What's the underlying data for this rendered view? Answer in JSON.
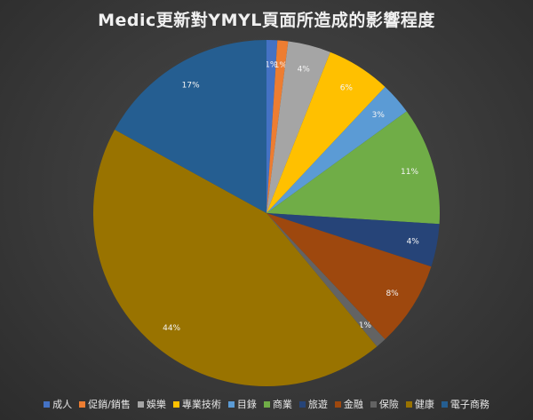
{
  "chart_data": {
    "type": "pie",
    "title": "Medic更新對YMYL頁面所造成的影響程度",
    "categories": [
      "成人",
      "促銷/銷售",
      "娛樂",
      "專業技術",
      "目錄",
      "商業",
      "旅遊",
      "金融",
      "保險",
      "健康",
      "電子商務"
    ],
    "values": [
      1,
      1,
      4,
      6,
      3,
      11,
      4,
      8,
      1,
      44,
      17
    ],
    "labels": [
      "1%",
      "1%",
      "4%",
      "6%",
      "3%",
      "11%",
      "4%",
      "8%",
      "1%",
      "44%",
      "17%"
    ],
    "colors": [
      "#4472c4",
      "#ed7d31",
      "#a5a5a5",
      "#ffc000",
      "#5b9bd5",
      "#70ad47",
      "#264478",
      "#9e480e",
      "#636363",
      "#997300",
      "#255e91"
    ],
    "legend_position": "bottom",
    "start_angle_deg": 0,
    "direction": "clockwise"
  }
}
